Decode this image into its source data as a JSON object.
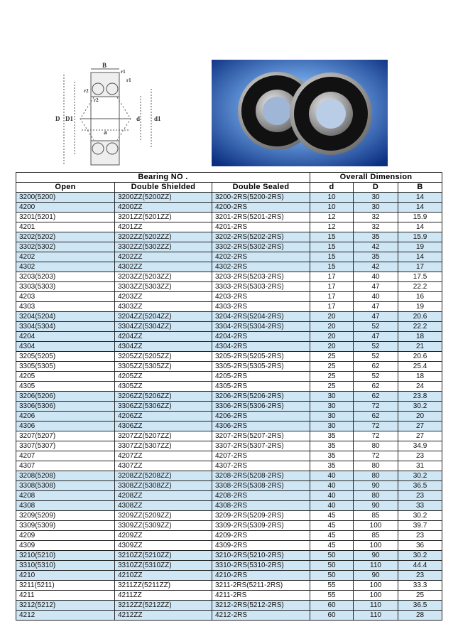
{
  "diagram": {
    "labels": [
      "B",
      "r1",
      "r1",
      "r2",
      "r2",
      "D",
      "D1",
      "d",
      "d1",
      "a"
    ]
  },
  "table": {
    "group_headers": {
      "bearing_no": "Bearing NO .",
      "overall_dimension": "Overall Dimension"
    },
    "columns": [
      "Open",
      "Double Shielded",
      "Double Sealed",
      "d",
      "D",
      "B"
    ],
    "rows": [
      [
        "3200(5200)",
        "3200ZZ(5200ZZ)",
        "3200-2RS(5200-2RS)",
        "10",
        "30",
        "14"
      ],
      [
        "4200",
        "4200ZZ",
        "4200-2RS",
        "10",
        "30",
        "14"
      ],
      [
        "3201(5201)",
        "3201ZZ(5201ZZ)",
        "3201-2RS(5201-2RS)",
        "12",
        "32",
        "15.9"
      ],
      [
        "4201",
        "4201ZZ",
        "4201-2RS",
        "12",
        "32",
        "14"
      ],
      [
        "3202(5202)",
        "3202ZZ(5202ZZ)",
        "3202-2RS(5202-2RS)",
        "15",
        "35",
        "15.9"
      ],
      [
        "3302(5302)",
        "3302ZZ(5302ZZ)",
        "3302-2RS(5302-2RS)",
        "15",
        "42",
        "19"
      ],
      [
        "4202",
        "4202ZZ",
        "4202-2RS",
        "15",
        "35",
        "14"
      ],
      [
        "4302",
        "4302ZZ",
        "4302-2RS",
        "15",
        "42",
        "17"
      ],
      [
        "3203(5203)",
        "3203ZZ(5203ZZ)",
        "3203-2RS(5203-2RS)",
        "17",
        "40",
        "17.5"
      ],
      [
        "3303(5303)",
        "3303ZZ(5303ZZ)",
        "3303-2RS(5303-2RS)",
        "17",
        "47",
        "22.2"
      ],
      [
        "4203",
        "4203ZZ",
        "4203-2RS",
        "17",
        "40",
        "16"
      ],
      [
        "4303",
        "4303ZZ",
        "4303-2RS",
        "17",
        "47",
        "19"
      ],
      [
        "3204(5204)",
        "3204ZZ(5204ZZ)",
        "3204-2RS(5204-2RS)",
        "20",
        "47",
        "20.6"
      ],
      [
        "3304(5304)",
        "3304ZZ(5304ZZ)",
        "3304-2RS(5304-2RS)",
        "20",
        "52",
        "22.2"
      ],
      [
        "4204",
        "4204ZZ",
        "4204-2RS",
        "20",
        "47",
        "18"
      ],
      [
        "4304",
        "4304ZZ",
        "4304-2RS",
        "20",
        "52",
        "21"
      ],
      [
        "3205(5205)",
        "3205ZZ(5205ZZ)",
        "3205-2RS(5205-2RS)",
        "25",
        "52",
        "20.6"
      ],
      [
        "3305(5305)",
        "3305ZZ(5305ZZ)",
        "3305-2RS(5305-2RS)",
        "25",
        "62",
        "25.4"
      ],
      [
        "4205",
        "4205ZZ",
        "4205-2RS",
        "25",
        "52",
        "18"
      ],
      [
        "4305",
        "4305ZZ",
        "4305-2RS",
        "25",
        "62",
        "24"
      ],
      [
        "3206(5206)",
        "3206ZZ(5206ZZ)",
        "3206-2RS(5206-2RS)",
        "30",
        "62",
        "23.8"
      ],
      [
        "3306(5306)",
        "3306ZZ(5306ZZ)",
        "3306-2RS(5306-2RS)",
        "30",
        "72",
        "30.2"
      ],
      [
        "4206",
        "4206ZZ",
        "4206-2RS",
        "30",
        "62",
        "20"
      ],
      [
        "4306",
        "4306ZZ",
        "4306-2RS",
        "30",
        "72",
        "27"
      ],
      [
        "3207(5207)",
        "3207ZZ(5207ZZ)",
        "3207-2RS(5207-2RS)",
        "35",
        "72",
        "27"
      ],
      [
        "3307(5307)",
        "3307ZZ(5307ZZ)",
        "3307-2RS(5307-2RS)",
        "35",
        "80",
        "34.9"
      ],
      [
        "4207",
        "4207ZZ",
        "4207-2RS",
        "35",
        "72",
        "23"
      ],
      [
        "4307",
        "4307ZZ",
        "4307-2RS",
        "35",
        "80",
        "31"
      ],
      [
        "3208(5208)",
        "3208ZZ(5208ZZ)",
        "3208-2RS(5208-2RS)",
        "40",
        "80",
        "30.2"
      ],
      [
        "3308(5308)",
        "3308ZZ(5308ZZ)",
        "3308-2RS(5308-2RS)",
        "40",
        "90",
        "36.5"
      ],
      [
        "4208",
        "4208ZZ",
        "4208-2RS",
        "40",
        "80",
        "23"
      ],
      [
        "4308",
        "4308ZZ",
        "4308-2RS",
        "40",
        "90",
        "33"
      ],
      [
        "3209(5209)",
        "3209ZZ(5209ZZ)",
        "3209-2RS(5209-2RS)",
        "45",
        "85",
        "30.2"
      ],
      [
        "3309(5309)",
        "3309ZZ(5309ZZ)",
        "3309-2RS(5309-2RS)",
        "45",
        "100",
        "39.7"
      ],
      [
        "4209",
        "4209ZZ",
        "4209-2RS",
        "45",
        "85",
        "23"
      ],
      [
        "4309",
        "4309ZZ",
        "4309-2RS",
        "45",
        "100",
        "36"
      ],
      [
        "3210(5210)",
        "3210ZZ(5210ZZ)",
        "3210-2RS(5210-2RS)",
        "50",
        "90",
        "30.2"
      ],
      [
        "3310(5310)",
        "3310ZZ(5310ZZ)",
        "3310-2RS(5310-2RS)",
        "50",
        "110",
        "44.4"
      ],
      [
        "4210",
        "4210ZZ",
        "4210-2RS",
        "50",
        "90",
        "23"
      ],
      [
        "3211(5211)",
        "3211ZZ(5211ZZ)",
        "3211-2RS(5211-2RS)",
        "55",
        "100",
        "33.3"
      ],
      [
        "4211",
        "4211ZZ",
        "4211-2RS",
        "55",
        "100",
        "25"
      ],
      [
        "3212(5212)",
        "3212ZZ(5212ZZ)",
        "3212-2RS(5212-2RS)",
        "60",
        "110",
        "36.5"
      ],
      [
        "4212",
        "4212ZZ",
        "4212-2RS",
        "60",
        "110",
        "28"
      ]
    ],
    "highlight_color": "#cfe6f4"
  }
}
